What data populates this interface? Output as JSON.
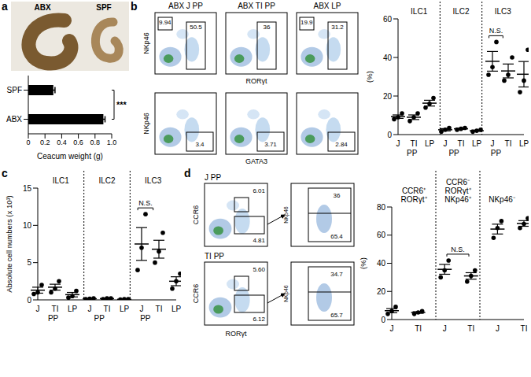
{
  "panel_labels": [
    "a",
    "b",
    "c",
    "d"
  ],
  "photo": {
    "labels": [
      "ABX",
      "SPF"
    ]
  },
  "chart_data": [
    {
      "type": "bar",
      "orientation": "horizontal",
      "categories": [
        "SPF",
        "ABX"
      ],
      "values": [
        0.3,
        0.9
      ],
      "errors": [
        0.02,
        0.02
      ],
      "color": "#000000",
      "xlabel": "Ceacum weight (g)",
      "xlim": [
        0,
        1
      ],
      "xticks": [
        0,
        0.2,
        0.4,
        0.6,
        0.8,
        {
          "value": 1,
          "label": "1.0"
        }
      ],
      "annotations": [
        {
          "text": "***",
          "between": [
            "SPF",
            "ABX"
          ]
        }
      ]
    },
    {
      "type": "dot",
      "color": "#000000",
      "ylabel": "(%)",
      "ylim": [
        0,
        60
      ],
      "yticks": [
        0,
        20,
        40,
        60
      ],
      "groups": [
        {
          "label": [
            "ILC1"
          ],
          "categories": [
            "J",
            "TI",
            "LP"
          ],
          "points": [
            [
              8,
              9,
              11
            ],
            [
              7,
              9,
              11
            ],
            [
              14,
              16,
              19
            ]
          ],
          "mean": [
            9.3,
            9,
            16.3
          ],
          "sem": [
            0.9,
            1.2,
            1.5
          ],
          "sub_label": {
            "text": "PP",
            "under": [
              "J",
              "TI"
            ]
          }
        },
        {
          "label": [
            "ILC2"
          ],
          "categories": [
            "J",
            "TI",
            "LP"
          ],
          "points": [
            [
              1.5,
              2.5,
              3.5
            ],
            [
              2.5,
              3,
              3.5
            ],
            [
              1.5,
              2,
              2.5
            ]
          ],
          "mean": [
            2.5,
            3,
            2
          ],
          "sem": [
            0.6,
            0.3,
            0.3
          ],
          "sub_label": {
            "text": "PP",
            "under": [
              "J",
              "TI"
            ]
          }
        },
        {
          "label": [
            "ILC3"
          ],
          "categories": [
            "J",
            "TI",
            "LP"
          ],
          "points": [
            [
              31,
              35,
              48
            ],
            [
              28,
              31,
              40
            ],
            [
              22,
              28,
              44
            ]
          ],
          "mean": [
            38,
            33,
            31.3
          ],
          "sem": [
            5.1,
            3.6,
            6.6
          ],
          "sub_label": {
            "text": "PP",
            "under": [
              "J",
              "TI"
            ]
          },
          "annotation": {
            "text": "N.S.",
            "between": [
              "J",
              "TI"
            ]
          }
        }
      ]
    },
    {
      "type": "dot",
      "color": "#000000",
      "ylabel": "Absolute cell numbers (x 10³)",
      "ylim": [
        0,
        15
      ],
      "yticks": [
        0,
        5,
        10,
        15
      ],
      "groups": [
        {
          "label": [
            "ILC1"
          ],
          "categories": [
            "J",
            "TI",
            "LP"
          ],
          "points": [
            [
              0.8,
              1,
              2
            ],
            [
              1,
              1.5,
              2.5
            ],
            [
              0.3,
              0.5,
              1.2
            ]
          ],
          "mean": [
            1.3,
            1.7,
            0.7
          ],
          "sem": [
            0.4,
            0.4,
            0.3
          ],
          "sub_label": {
            "text": "PP",
            "under": [
              "J",
              "TI"
            ]
          }
        },
        {
          "label": [
            "ILC2"
          ],
          "categories": [
            "J",
            "TI",
            "LP"
          ],
          "points": [
            [
              0.1,
              0.15,
              0.2
            ],
            [
              0.1,
              0.2,
              0.2
            ],
            [
              0.05,
              0.1,
              0.1
            ]
          ],
          "mean": [
            0.15,
            0.17,
            0.08
          ],
          "sem": [
            0.03,
            0.03,
            0.02
          ],
          "sub_label": {
            "text": "PP",
            "under": [
              "J",
              "TI"
            ]
          }
        },
        {
          "label": [
            "ILC3"
          ],
          "categories": [
            "J",
            "TI",
            "LP"
          ],
          "points": [
            [
              4,
              7,
              11.5
            ],
            [
              5,
              6.5,
              9
            ],
            [
              1.5,
              2.5,
              3.5
            ]
          ],
          "mean": [
            7.5,
            6.8,
            2.5
          ],
          "sem": [
            2.2,
            1.2,
            0.6
          ],
          "sub_label": {
            "text": "PP",
            "under": [
              "J",
              "TI"
            ]
          },
          "annotation": {
            "text": "N.S.",
            "between": [
              "J",
              "TI"
            ]
          }
        }
      ]
    },
    {
      "type": "dot",
      "color": "#000000",
      "ylabel": "(%)",
      "ylim": [
        0,
        80
      ],
      "yticks": [
        0,
        20,
        40,
        60,
        80
      ],
      "groups": [
        {
          "label": [
            "CCR6⁺",
            "RORγt⁺"
          ],
          "categories": [
            "J",
            "TI"
          ],
          "points": [
            [
              4,
              6,
              9
            ],
            [
              4,
              5,
              6
            ]
          ],
          "mean": [
            6.3,
            5
          ],
          "sem": [
            1.5,
            0.6
          ]
        },
        {
          "label": [
            "CCR6⁻",
            "RORγt⁺",
            "NKp46⁺"
          ],
          "categories": [
            "J",
            "TI"
          ],
          "points": [
            [
              30,
              35,
              42
            ],
            [
              27,
              31,
              35
            ]
          ],
          "mean": [
            35.7,
            31
          ],
          "sem": [
            3.5,
            2.3
          ],
          "annotation": {
            "text": "N.S.",
            "between": [
              "J",
              "TI"
            ]
          }
        },
        {
          "label": [
            "NKp46⁻"
          ],
          "categories": [
            "J",
            "TI"
          ],
          "points": [
            [
              58,
              65,
              70
            ],
            [
              65,
              68,
              72
            ]
          ],
          "mean": [
            64.3,
            68.3
          ],
          "sem": [
            3.5,
            2
          ]
        }
      ]
    }
  ],
  "flow_b": {
    "top_y_label": "NKp46",
    "top_x_label": "RORγt",
    "bottom_y_label": "NKp46",
    "bottom_x_label": "GATA3",
    "plots": [
      {
        "title": "ABX J PP",
        "top_gates": {
          "left": "9.94",
          "right": "50.5"
        },
        "bottom_gate": "3.4"
      },
      {
        "title": "ABX TI PP",
        "top_gates": {
          "right": "36"
        },
        "bottom_gate": "3.71"
      },
      {
        "title": "ABX LP",
        "top_gates": {
          "left": "19.9",
          "right": "31.2"
        },
        "bottom_gate": "2.84"
      }
    ]
  },
  "flow_d": {
    "y_label": "CCR6",
    "x_label": "RORγt",
    "sub_y_label": "NKp46",
    "rows": [
      {
        "label": "J PP",
        "gates": [
          "6.01",
          "4.81"
        ],
        "sub_gates": [
          "36",
          "65.4"
        ]
      },
      {
        "label": "TI PP",
        "gates": [
          "5.60",
          "6.12"
        ],
        "sub_gates": [
          "34.7",
          "65.7"
        ]
      }
    ]
  }
}
